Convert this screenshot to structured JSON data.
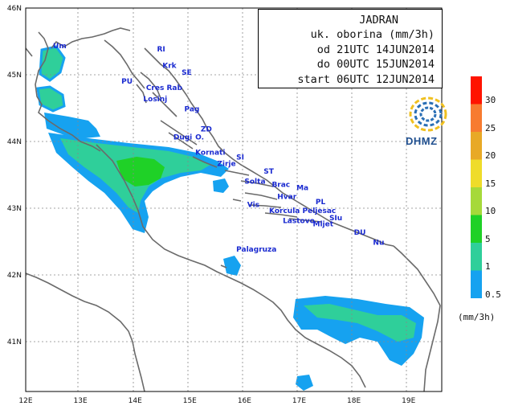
{
  "title_box": {
    "line1": "JADRAN",
    "line2": "uk. oborina (mm/3h)",
    "line3": "od 21UTC 14JUN2014",
    "line4": "do 00UTC 15JUN2014",
    "line5": "start 06UTC 12JUN2014"
  },
  "logo_text": "DHMZ",
  "legend": {
    "unit": "(mm/3h)",
    "levels": [
      {
        "label": "30",
        "color": "#ff1400"
      },
      {
        "label": "25",
        "color": "#f77b30"
      },
      {
        "label": "20",
        "color": "#e8a926"
      },
      {
        "label": "15",
        "color": "#efdc2a"
      },
      {
        "label": "10",
        "color": "#a6d93a"
      },
      {
        "label": "5",
        "color": "#1fd127"
      },
      {
        "label": "1",
        "color": "#2fcf9a"
      },
      {
        "label": "0.5",
        "color": "#16a2f0"
      }
    ]
  },
  "axes": {
    "lon_labels": [
      "12E",
      "13E",
      "14E",
      "15E",
      "16E",
      "17E",
      "18E",
      "19E"
    ],
    "lat_labels": [
      "46N",
      "45N",
      "44N",
      "43N",
      "42N",
      "41N"
    ]
  },
  "places": [
    {
      "name": "Um",
      "lon": 12.5,
      "lat": 45.4
    },
    {
      "name": "RI",
      "lon": 14.4,
      "lat": 45.35
    },
    {
      "name": "Krk",
      "lon": 14.5,
      "lat": 45.1
    },
    {
      "name": "SE",
      "lon": 14.85,
      "lat": 45.0
    },
    {
      "name": "PU",
      "lon": 13.75,
      "lat": 44.87
    },
    {
      "name": "Cres Rab",
      "lon": 14.2,
      "lat": 44.77
    },
    {
      "name": "Losinj",
      "lon": 14.15,
      "lat": 44.6
    },
    {
      "name": "Pag",
      "lon": 14.9,
      "lat": 44.45
    },
    {
      "name": "ZD",
      "lon": 15.2,
      "lat": 44.15
    },
    {
      "name": "Dugi",
      "lon": 14.7,
      "lat": 44.03
    },
    {
      "name": "O.",
      "lon": 15.1,
      "lat": 44.03
    },
    {
      "name": "Kornati",
      "lon": 15.1,
      "lat": 43.8
    },
    {
      "name": "SI",
      "lon": 15.85,
      "lat": 43.73
    },
    {
      "name": "Zirje",
      "lon": 15.5,
      "lat": 43.63
    },
    {
      "name": "ST",
      "lon": 16.35,
      "lat": 43.52
    },
    {
      "name": "Solta",
      "lon": 16.0,
      "lat": 43.37
    },
    {
      "name": "Brac",
      "lon": 16.5,
      "lat": 43.32
    },
    {
      "name": "Ma",
      "lon": 16.95,
      "lat": 43.27
    },
    {
      "name": "Hvar",
      "lon": 16.6,
      "lat": 43.14
    },
    {
      "name": "PL",
      "lon": 17.3,
      "lat": 43.06
    },
    {
      "name": "Vis",
      "lon": 16.05,
      "lat": 43.02
    },
    {
      "name": "Korcula Peljesac",
      "lon": 16.45,
      "lat": 42.93
    },
    {
      "name": "Lastovo",
      "lon": 16.7,
      "lat": 42.78
    },
    {
      "name": "Mljet",
      "lon": 17.25,
      "lat": 42.73
    },
    {
      "name": "SIu",
      "lon": 17.55,
      "lat": 42.82
    },
    {
      "name": "DU",
      "lon": 18.0,
      "lat": 42.6
    },
    {
      "name": "Nu",
      "lon": 18.35,
      "lat": 42.45
    },
    {
      "name": "Palagruza",
      "lon": 15.85,
      "lat": 42.35
    }
  ]
}
